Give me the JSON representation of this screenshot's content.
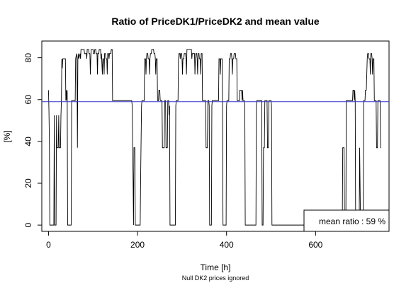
{
  "chart_data": {
    "type": "line",
    "title": "Ratio of PriceDK1/PriceDK2 and mean value",
    "xlabel": "Time [h]",
    "ylabel": "[%]",
    "caption": "Null DK2 prices ignored",
    "xlim": [
      -15,
      765
    ],
    "ylim": [
      -3,
      88
    ],
    "x_ticks": [
      0,
      200,
      400,
      600
    ],
    "y_ticks": [
      0,
      20,
      40,
      60,
      80
    ],
    "grid": false,
    "legend": {
      "text": "mean ratio : 59 %",
      "position": "bottom-right"
    },
    "mean_line": {
      "y": 59,
      "color": "#3333cc"
    },
    "series": [
      {
        "color": "#000000",
        "points": [
          [
            0,
            64.5
          ],
          [
            1,
            55
          ],
          [
            2,
            40
          ],
          [
            3,
            0
          ],
          [
            10,
            0
          ],
          [
            12,
            0
          ],
          [
            13,
            52.5
          ],
          [
            14,
            0
          ],
          [
            17,
            0
          ],
          [
            18,
            52.5
          ],
          [
            19,
            37
          ],
          [
            22,
            37
          ],
          [
            23,
            52.5
          ],
          [
            24,
            37
          ],
          [
            27,
            37
          ],
          [
            28,
            52.5
          ],
          [
            29,
            59.5
          ],
          [
            30,
            79.5
          ],
          [
            31,
            75
          ],
          [
            32,
            79.5
          ],
          [
            38,
            79.5
          ],
          [
            39,
            59.5
          ],
          [
            40,
            64.5
          ],
          [
            41,
            59.5
          ],
          [
            42,
            64.5
          ],
          [
            43,
            0
          ],
          [
            51,
            0
          ],
          [
            52,
            59.5
          ],
          [
            60,
            59.5
          ],
          [
            61,
            79.5
          ],
          [
            63,
            82
          ],
          [
            64,
            79.5
          ],
          [
            65,
            37
          ],
          [
            66,
            79.5
          ],
          [
            67,
            82
          ],
          [
            68,
            79.5
          ],
          [
            71,
            82
          ],
          [
            72,
            79.5
          ],
          [
            73,
            84
          ],
          [
            80,
            84
          ],
          [
            81,
            82
          ],
          [
            85,
            82
          ],
          [
            86,
            79.5
          ],
          [
            87,
            84
          ],
          [
            90,
            84
          ],
          [
            91,
            82
          ],
          [
            93,
            82
          ],
          [
            94,
            72
          ],
          [
            95,
            79.5
          ],
          [
            96,
            84
          ],
          [
            100,
            84
          ],
          [
            101,
            82
          ],
          [
            103,
            82
          ],
          [
            104,
            84
          ],
          [
            106,
            84
          ],
          [
            107,
            82
          ],
          [
            109,
            82
          ],
          [
            110,
            72
          ],
          [
            111,
            82
          ],
          [
            113,
            82
          ],
          [
            114,
            84
          ],
          [
            117,
            84
          ],
          [
            118,
            79.5
          ],
          [
            119,
            82
          ],
          [
            121,
            72
          ],
          [
            122,
            79.5
          ],
          [
            124,
            79.5
          ],
          [
            125,
            72
          ],
          [
            126,
            82
          ],
          [
            128,
            82
          ],
          [
            129,
            79.5
          ],
          [
            131,
            79.5
          ],
          [
            132,
            72
          ],
          [
            133,
            82
          ],
          [
            135,
            82
          ],
          [
            136,
            79.5
          ],
          [
            137,
            82
          ],
          [
            140,
            82
          ],
          [
            141,
            84
          ],
          [
            143,
            84
          ],
          [
            144,
            59.5
          ],
          [
            150,
            59.5
          ],
          [
            155,
            59.5
          ],
          [
            160,
            59.5
          ],
          [
            180,
            59.5
          ],
          [
            187,
            59.5
          ],
          [
            188,
            57
          ],
          [
            189,
            40
          ],
          [
            190,
            22
          ],
          [
            191,
            0
          ],
          [
            192,
            37
          ],
          [
            194,
            37
          ],
          [
            195,
            0
          ],
          [
            206,
            0
          ],
          [
            207,
            22
          ],
          [
            208,
            40
          ],
          [
            209,
            57
          ],
          [
            210,
            59.5
          ],
          [
            215,
            59.5
          ],
          [
            216,
            79.5
          ],
          [
            218,
            79.5
          ],
          [
            219,
            72
          ],
          [
            220,
            79.5
          ],
          [
            221,
            82
          ],
          [
            223,
            82
          ],
          [
            224,
            79.5
          ],
          [
            226,
            79.5
          ],
          [
            227,
            72
          ],
          [
            228,
            79.5
          ],
          [
            229,
            82
          ],
          [
            231,
            82
          ],
          [
            232,
            84
          ],
          [
            236,
            84
          ],
          [
            237,
            82
          ],
          [
            239,
            82
          ],
          [
            240,
            79.5
          ],
          [
            241,
            72
          ],
          [
            242,
            79.5
          ],
          [
            244,
            79.5
          ],
          [
            245,
            59.5
          ],
          [
            247,
            59.5
          ],
          [
            248,
            64.5
          ],
          [
            250,
            64.5
          ],
          [
            251,
            59.5
          ],
          [
            254,
            59.5
          ],
          [
            255,
            59.5
          ],
          [
            256,
            37
          ],
          [
            260,
            37
          ],
          [
            261,
            59.5
          ],
          [
            263,
            59.5
          ],
          [
            264,
            37
          ],
          [
            267,
            37
          ],
          [
            268,
            59.5
          ],
          [
            270,
            59.5
          ],
          [
            271,
            52.5
          ],
          [
            272,
            57
          ],
          [
            273,
            0
          ],
          [
            284,
            0
          ],
          [
            285,
            0
          ],
          [
            286,
            57
          ],
          [
            287,
            59.5
          ],
          [
            291,
            59.5
          ],
          [
            292,
            79.5
          ],
          [
            293,
            82
          ],
          [
            295,
            82
          ],
          [
            296,
            79.5
          ],
          [
            297,
            82
          ],
          [
            299,
            82
          ],
          [
            300,
            79.5
          ],
          [
            301,
            72
          ],
          [
            302,
            79.5
          ],
          [
            304,
            79.5
          ],
          [
            305,
            82
          ],
          [
            308,
            82
          ],
          [
            309,
            79.5
          ],
          [
            310,
            72
          ],
          [
            311,
            84
          ],
          [
            321,
            84
          ],
          [
            322,
            79.5
          ],
          [
            323,
            82
          ],
          [
            328,
            82
          ],
          [
            329,
            72
          ],
          [
            330,
            79.5
          ],
          [
            331,
            82
          ],
          [
            333,
            82
          ],
          [
            334,
            79.5
          ],
          [
            335,
            72
          ],
          [
            336,
            82
          ],
          [
            338,
            82
          ],
          [
            339,
            79.5
          ],
          [
            341,
            79.5
          ],
          [
            342,
            72
          ],
          [
            343,
            82
          ],
          [
            345,
            82
          ],
          [
            346,
            59.5
          ],
          [
            350,
            59.5
          ],
          [
            352,
            59.5
          ],
          [
            353,
            59.5
          ],
          [
            354,
            37
          ],
          [
            357,
            37
          ],
          [
            358,
            59.5
          ],
          [
            360,
            59.5
          ],
          [
            361,
            57
          ],
          [
            362,
            0
          ],
          [
            366,
            0
          ],
          [
            367,
            57
          ],
          [
            368,
            59.5
          ],
          [
            382,
            59.5
          ],
          [
            383,
            79.5
          ],
          [
            385,
            79.5
          ],
          [
            386,
            72
          ],
          [
            387,
            79.5
          ],
          [
            390,
            79.5
          ],
          [
            391,
            57
          ],
          [
            392,
            0
          ],
          [
            399,
            0
          ],
          [
            400,
            57
          ],
          [
            401,
            59.5
          ],
          [
            405,
            59.5
          ],
          [
            406,
            79.5
          ],
          [
            408,
            79.5
          ],
          [
            409,
            82
          ],
          [
            411,
            82
          ],
          [
            412,
            79.5
          ],
          [
            413,
            72
          ],
          [
            414,
            79.5
          ],
          [
            416,
            79.5
          ],
          [
            417,
            82
          ],
          [
            420,
            82
          ],
          [
            421,
            79.5
          ],
          [
            423,
            79.5
          ],
          [
            424,
            59.5
          ],
          [
            429,
            59.5
          ],
          [
            430,
            64.5
          ],
          [
            434,
            64.5
          ],
          [
            435,
            59.5
          ],
          [
            436,
            64.5
          ],
          [
            437,
            59.5
          ],
          [
            440,
            59.5
          ],
          [
            441,
            57
          ],
          [
            442,
            0
          ],
          [
            465,
            0
          ],
          [
            466,
            0
          ],
          [
            467,
            57
          ],
          [
            468,
            59.5
          ],
          [
            479,
            59.5
          ],
          [
            480,
            0
          ],
          [
            482,
            0
          ],
          [
            483,
            37
          ],
          [
            485,
            37
          ],
          [
            486,
            59.5
          ],
          [
            491,
            59.5
          ],
          [
            492,
            37
          ],
          [
            494,
            37
          ],
          [
            495,
            59.5
          ],
          [
            498,
            59.5
          ],
          [
            500,
            59.5
          ],
          [
            501,
            57
          ],
          [
            502,
            0
          ],
          [
            660,
            0
          ],
          [
            661,
            37
          ],
          [
            664,
            37
          ],
          [
            665,
            0
          ],
          [
            667,
            0
          ],
          [
            668,
            0
          ],
          [
            669,
            59.5
          ],
          [
            683,
            59.5
          ],
          [
            684,
            64.5
          ],
          [
            686,
            64.5
          ],
          [
            687,
            59.5
          ],
          [
            688,
            64.5
          ],
          [
            689,
            59.5
          ],
          [
            690,
            0
          ],
          [
            698,
            0
          ],
          [
            699,
            37
          ],
          [
            701,
            0
          ],
          [
            707,
            0
          ],
          [
            708,
            59.5
          ],
          [
            711,
            59.5
          ],
          [
            712,
            64.5
          ],
          [
            714,
            64.5
          ],
          [
            715,
            72
          ],
          [
            716,
            79.5
          ],
          [
            717,
            82
          ],
          [
            719,
            82
          ],
          [
            720,
            79.5
          ],
          [
            722,
            79.5
          ],
          [
            723,
            72
          ],
          [
            724,
            82
          ],
          [
            726,
            82
          ],
          [
            727,
            79.5
          ],
          [
            728,
            72
          ],
          [
            729,
            79.5
          ],
          [
            731,
            79.5
          ],
          [
            732,
            59.5
          ],
          [
            736,
            59.5
          ],
          [
            737,
            37
          ],
          [
            739,
            37
          ],
          [
            740,
            59.5
          ],
          [
            745,
            59.5
          ],
          [
            746,
            37
          ],
          [
            747,
            37
          ]
        ]
      }
    ]
  }
}
